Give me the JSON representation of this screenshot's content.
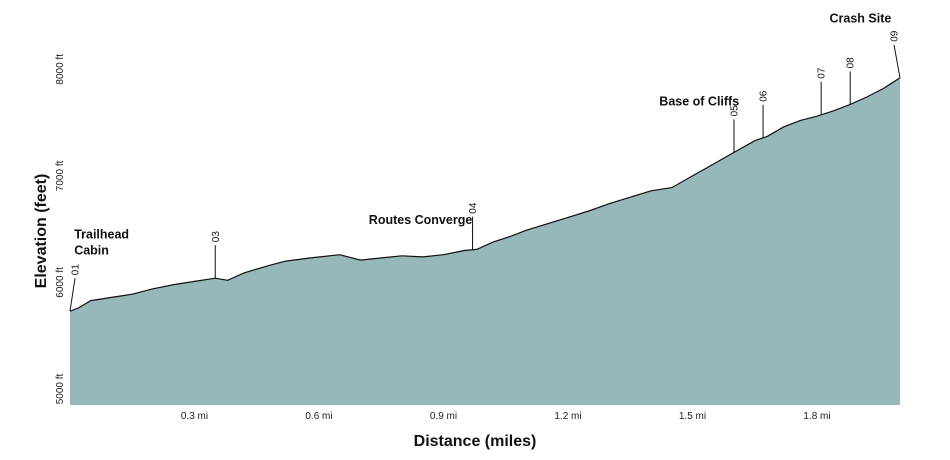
{
  "chart_data": {
    "type": "area",
    "title": "",
    "xlabel": "Distance (miles)",
    "ylabel": "Elevation (feet)",
    "xlim": [
      0,
      2.0
    ],
    "ylim": [
      4850,
      8650
    ],
    "grid": false,
    "fill_color": "#96b8b8",
    "line_color": "#111111",
    "x_ticks": [
      {
        "value": 0.3,
        "label": "0.3 mi"
      },
      {
        "value": 0.6,
        "label": "0.6 mi"
      },
      {
        "value": 0.9,
        "label": "0.9 mi"
      },
      {
        "value": 1.2,
        "label": "1.2 mi"
      },
      {
        "value": 1.5,
        "label": "1.5 mi"
      },
      {
        "value": 1.8,
        "label": "1.8 mi"
      }
    ],
    "y_ticks": [
      {
        "value": 5000,
        "label": "5000 ft"
      },
      {
        "value": 6000,
        "label": "6000 ft"
      },
      {
        "value": 7000,
        "label": "7000 ft"
      },
      {
        "value": 8000,
        "label": "8000 ft"
      }
    ],
    "x": [
      0.0,
      0.02,
      0.05,
      0.1,
      0.15,
      0.2,
      0.25,
      0.3,
      0.35,
      0.38,
      0.42,
      0.48,
      0.52,
      0.58,
      0.65,
      0.7,
      0.75,
      0.8,
      0.85,
      0.9,
      0.95,
      0.98,
      1.02,
      1.06,
      1.1,
      1.15,
      1.2,
      1.25,
      1.3,
      1.35,
      1.4,
      1.45,
      1.5,
      1.55,
      1.6,
      1.65,
      1.68,
      1.72,
      1.76,
      1.8,
      1.84,
      1.88,
      1.92,
      1.96,
      2.0
    ],
    "y": [
      5730,
      5760,
      5830,
      5860,
      5890,
      5940,
      5980,
      6010,
      6040,
      6020,
      6090,
      6160,
      6200,
      6230,
      6260,
      6210,
      6230,
      6250,
      6240,
      6260,
      6300,
      6310,
      6380,
      6430,
      6490,
      6550,
      6610,
      6670,
      6740,
      6800,
      6860,
      6890,
      7000,
      7110,
      7220,
      7330,
      7370,
      7460,
      7520,
      7560,
      7610,
      7670,
      7740,
      7820,
      7920
    ],
    "waypoints": [
      {
        "label": "01",
        "x": 0.0
      },
      {
        "label": "03",
        "x": 0.35
      },
      {
        "label": "04",
        "x": 0.97
      },
      {
        "label": "05",
        "x": 1.6
      },
      {
        "label": "06",
        "x": 1.67
      },
      {
        "label": "07",
        "x": 1.81
      },
      {
        "label": "08",
        "x": 1.88
      },
      {
        "label": "09",
        "x": 2.0
      }
    ],
    "annotations": [
      {
        "lines": [
          "Trailhead",
          "Cabin"
        ],
        "x": 0.01,
        "y": 6410
      },
      {
        "lines": [
          "Routes Converge"
        ],
        "x": 0.72,
        "y": 6550
      },
      {
        "lines": [
          "Base of Cliffs"
        ],
        "x": 1.42,
        "y": 7660
      },
      {
        "lines": [
          "Crash Site"
        ],
        "x": 1.83,
        "y": 8440
      }
    ]
  }
}
